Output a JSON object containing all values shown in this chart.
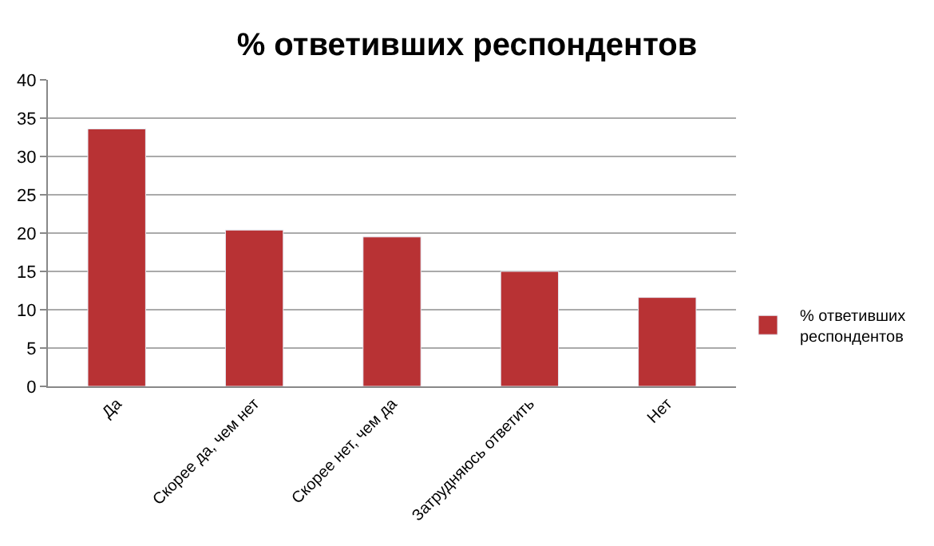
{
  "chart_data": {
    "type": "bar",
    "title": "% ответивших респондентов",
    "categories": [
      "Да",
      "Скорее да, чем нет",
      "Скорее нет, чем да",
      "Затрудняюсь ответить",
      "Нет"
    ],
    "series": [
      {
        "name": "% ответивших респондентов",
        "color": "#b83234",
        "values": [
          33.6,
          20.4,
          19.5,
          15.0,
          11.6
        ]
      }
    ],
    "ylim": [
      0,
      40
    ],
    "yticks": [
      0,
      5,
      10,
      15,
      20,
      25,
      30,
      35,
      40
    ],
    "grid": "y",
    "legend": "right"
  }
}
